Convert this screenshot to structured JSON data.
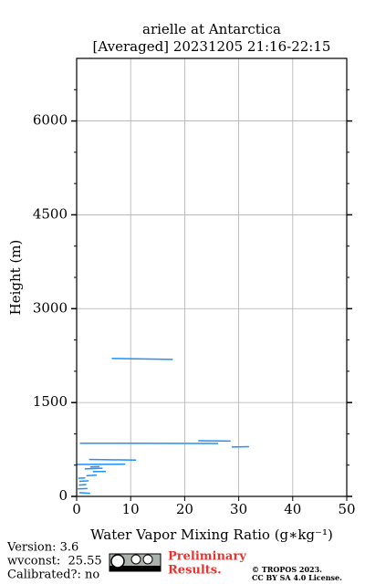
{
  "chart_data": {
    "type": "profile",
    "title": [
      "arielle at Antarctica",
      "[Averaged] 20231205 21:16-22:15"
    ],
    "xlabel": "Water Vapor Mixing Ratio (g∗kg⁻¹)",
    "ylabel": "Height (m)",
    "color": "#1e90ff",
    "x": [
      6.5,
      17.8,
      null,
      0.6,
      26.2,
      null,
      22.5,
      28.5,
      null,
      28.7,
      31.9,
      null,
      2.3,
      11,
      null,
      0,
      9,
      null,
      2.5,
      4.2,
      null,
      1.5,
      4.8,
      null,
      3,
      5.4,
      null,
      1.8,
      3.7,
      null,
      0.3,
      1.6,
      null,
      0.5,
      2.2,
      null,
      0.4,
      1.8,
      null,
      0.2,
      2,
      null,
      0.5,
      2.5
    ],
    "y": [
      2205,
      2190,
      null,
      850,
      845,
      null,
      890,
      885,
      null,
      790,
      795,
      null,
      590,
      580,
      null,
      510,
      515,
      null,
      470,
      475,
      null,
      440,
      450,
      null,
      395,
      400,
      null,
      330,
      340,
      null,
      290,
      295,
      null,
      240,
      250,
      null,
      180,
      190,
      null,
      120,
      125,
      null,
      60,
      50
    ],
    "xlim": [
      0,
      50
    ],
    "xticks": [
      0,
      10,
      20,
      30,
      40,
      50
    ],
    "ylim": [
      0,
      7000
    ],
    "yticks": [
      0,
      1500,
      3000,
      4500,
      6000
    ],
    "yminorticks": [
      500,
      1000,
      2000,
      2500,
      3500,
      4000,
      5000,
      5500,
      6500
    ],
    "grid": true,
    "footer": [
      "Version: 3.6",
      "wvconst:  25.55",
      "Calibrated?: no"
    ],
    "notice": [
      "Preliminary",
      "Results."
    ],
    "copyright": [
      "© TROPOS 2023.",
      "CC BY SA 4.0 License."
    ]
  }
}
